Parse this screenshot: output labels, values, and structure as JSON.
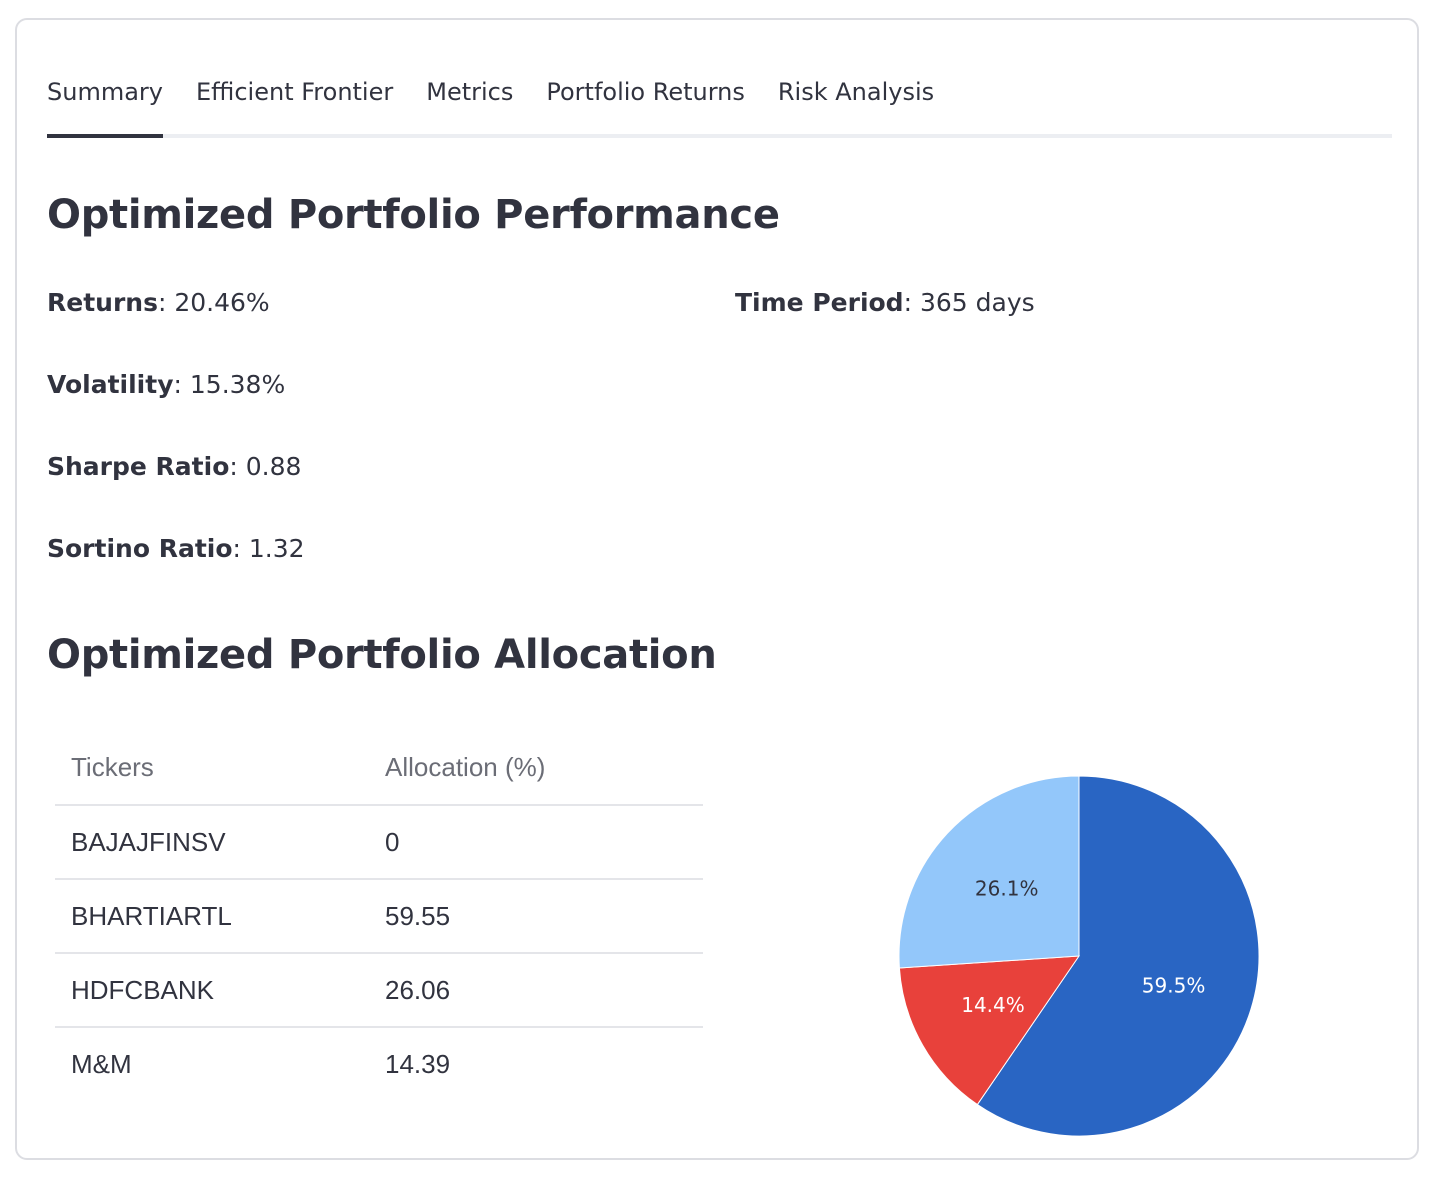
{
  "tabs": [
    {
      "label": "Summary",
      "active": true
    },
    {
      "label": "Efficient Frontier",
      "active": false
    },
    {
      "label": "Metrics",
      "active": false
    },
    {
      "label": "Portfolio Returns",
      "active": false
    },
    {
      "label": "Risk Analysis",
      "active": false
    }
  ],
  "performance": {
    "title": "Optimized Portfolio Performance",
    "returns": {
      "label": "Returns",
      "value": ": 20.46%"
    },
    "volatility": {
      "label": "Volatility",
      "value": ": 15.38%"
    },
    "sharpe": {
      "label": "Sharpe Ratio",
      "value": ": 0.88"
    },
    "sortino": {
      "label": "Sortino Ratio",
      "value": ": 1.32"
    },
    "time_period": {
      "label": "Time Period",
      "value": ": 365 days"
    }
  },
  "allocation": {
    "title": "Optimized Portfolio Allocation",
    "columns": [
      "Tickers",
      "Allocation (%)"
    ],
    "rows": [
      {
        "ticker": "BAJAJFINSV",
        "allocation": "0"
      },
      {
        "ticker": "BHARTIARTL",
        "allocation": "59.55"
      },
      {
        "ticker": "HDFCBANK",
        "allocation": "26.06"
      },
      {
        "ticker": "M&M",
        "allocation": "14.39"
      }
    ]
  },
  "chart_data": {
    "type": "pie",
    "slices": [
      {
        "name": "BHARTIARTL",
        "value": 59.55,
        "label": "59.5%",
        "color": "#2965c3",
        "label_color": "#ffffff"
      },
      {
        "name": "M&M",
        "value": 14.39,
        "label": "14.4%",
        "color": "#e8413b",
        "label_color": "#ffffff"
      },
      {
        "name": "HDFCBANK",
        "value": 26.06,
        "label": "26.1%",
        "color": "#93c7fa",
        "label_color": "#31333f"
      }
    ],
    "start_angle_deg": 0,
    "direction": "clockwise"
  }
}
